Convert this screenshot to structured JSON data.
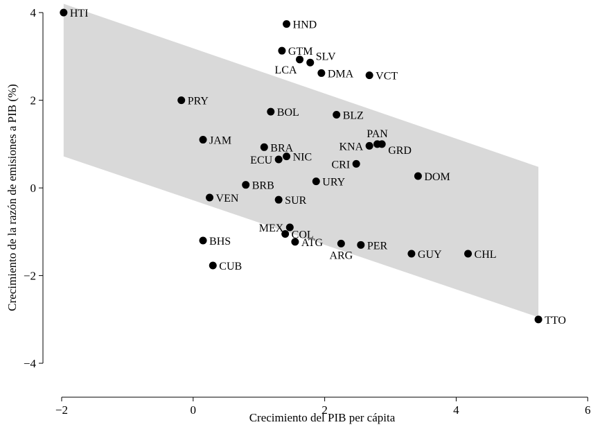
{
  "chart_data": {
    "type": "scatter",
    "xlabel": "Crecimiento del PIB per cápita",
    "ylabel": "Crecimiento de la razón de emisiones a PIB (%)",
    "xlim": [
      -2.2,
      6.05
    ],
    "ylim": [
      -4.6,
      4.05
    ],
    "xticks": [
      -2,
      0,
      2,
      4,
      6
    ],
    "yticks": [
      -4,
      -2,
      0,
      2,
      4
    ],
    "grid": false,
    "band_color": "#d9d9d9",
    "point_color": "#000000",
    "confidence_band": {
      "x": [
        -1.97,
        5.25
      ],
      "upper": [
        4.2,
        0.48
      ],
      "lower": [
        0.72,
        -2.95
      ]
    },
    "points": [
      {
        "label": "HTI",
        "x": -1.97,
        "y": 4.0,
        "anchor": "right"
      },
      {
        "label": "HND",
        "x": 1.42,
        "y": 3.74,
        "anchor": "right"
      },
      {
        "label": "GTM",
        "x": 1.35,
        "y": 3.13,
        "anchor": "right"
      },
      {
        "label": "LCA",
        "x": 1.62,
        "y": 2.93,
        "anchor": "below-left"
      },
      {
        "label": "SLV",
        "x": 1.78,
        "y": 2.86,
        "anchor": "above-right"
      },
      {
        "label": "DMA",
        "x": 1.95,
        "y": 2.62,
        "anchor": "right"
      },
      {
        "label": "VCT",
        "x": 2.68,
        "y": 2.57,
        "anchor": "right"
      },
      {
        "label": "PRY",
        "x": -0.18,
        "y": 2.0,
        "anchor": "right"
      },
      {
        "label": "BOL",
        "x": 1.18,
        "y": 1.74,
        "anchor": "right"
      },
      {
        "label": "BLZ",
        "x": 2.18,
        "y": 1.67,
        "anchor": "right"
      },
      {
        "label": "JAM",
        "x": 0.15,
        "y": 1.1,
        "anchor": "right"
      },
      {
        "label": "BRA",
        "x": 1.08,
        "y": 0.93,
        "anchor": "right"
      },
      {
        "label": "KNA",
        "x": 2.68,
        "y": 0.96,
        "anchor": "left"
      },
      {
        "label": "PAN",
        "x": 2.8,
        "y": 1.0,
        "anchor": "above"
      },
      {
        "label": "GRD",
        "x": 2.87,
        "y": 1.0,
        "anchor": "below-right"
      },
      {
        "label": "NIC",
        "x": 1.42,
        "y": 0.72,
        "anchor": "right"
      },
      {
        "label": "ECU",
        "x": 1.3,
        "y": 0.65,
        "anchor": "left"
      },
      {
        "label": "CRI",
        "x": 2.48,
        "y": 0.55,
        "anchor": "left"
      },
      {
        "label": "DOM",
        "x": 3.42,
        "y": 0.27,
        "anchor": "right"
      },
      {
        "label": "URY",
        "x": 1.87,
        "y": 0.15,
        "anchor": "right"
      },
      {
        "label": "BRB",
        "x": 0.8,
        "y": 0.07,
        "anchor": "right"
      },
      {
        "label": "VEN",
        "x": 0.25,
        "y": -0.22,
        "anchor": "right"
      },
      {
        "label": "SUR",
        "x": 1.3,
        "y": -0.27,
        "anchor": "right"
      },
      {
        "label": "MEX",
        "x": 1.47,
        "y": -0.9,
        "anchor": "left"
      },
      {
        "label": "COL",
        "x": 1.4,
        "y": -1.05,
        "anchor": "right"
      },
      {
        "label": "ATG",
        "x": 1.55,
        "y": -1.23,
        "anchor": "right"
      },
      {
        "label": "ARG",
        "x": 2.25,
        "y": -1.27,
        "anchor": "below"
      },
      {
        "label": "PER",
        "x": 2.55,
        "y": -1.3,
        "anchor": "right"
      },
      {
        "label": "BHS",
        "x": 0.15,
        "y": -1.2,
        "anchor": "right"
      },
      {
        "label": "GUY",
        "x": 3.32,
        "y": -1.5,
        "anchor": "right"
      },
      {
        "label": "CHL",
        "x": 4.18,
        "y": -1.5,
        "anchor": "right"
      },
      {
        "label": "CUB",
        "x": 0.3,
        "y": -1.77,
        "anchor": "right"
      },
      {
        "label": "TTO",
        "x": 5.25,
        "y": -3.0,
        "anchor": "right"
      }
    ]
  }
}
